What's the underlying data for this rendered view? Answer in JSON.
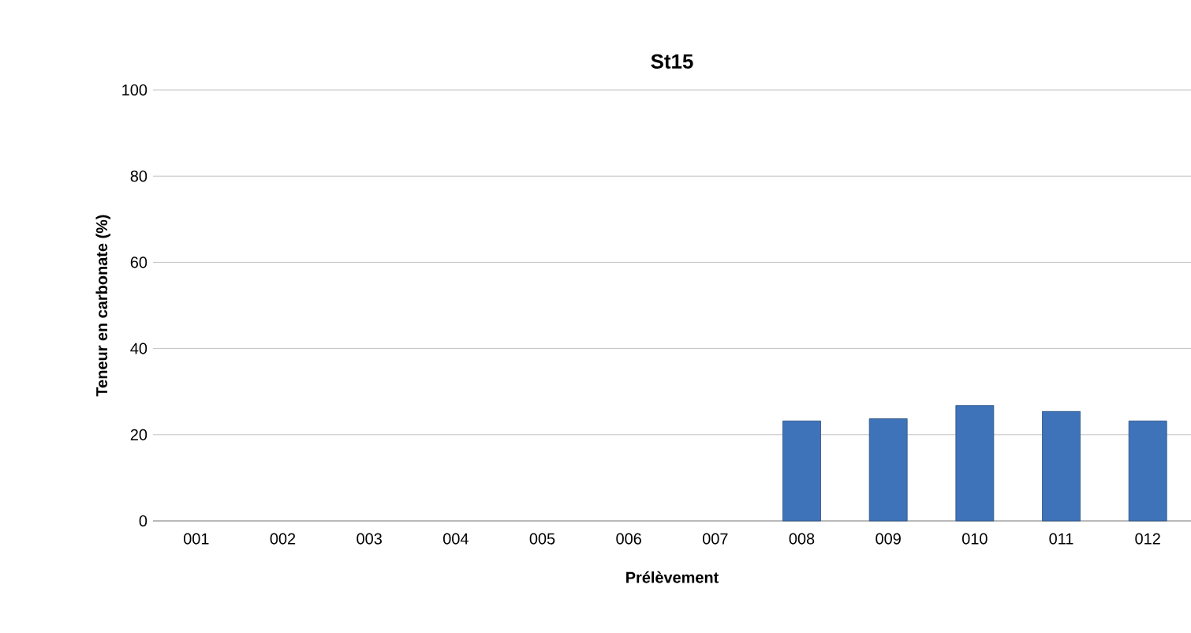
{
  "chart_data": {
    "type": "bar",
    "title": "St15",
    "xlabel": "Prélèvement",
    "ylabel": "Teneur en carbonate (%)",
    "categories": [
      "001",
      "002",
      "003",
      "004",
      "005",
      "006",
      "007",
      "008",
      "009",
      "010",
      "011",
      "012"
    ],
    "values": [
      null,
      null,
      null,
      null,
      null,
      null,
      null,
      23.2,
      23.7,
      26.8,
      25.4,
      23.2
    ],
    "color": "#3e73b9",
    "ylim": [
      0,
      100
    ],
    "yticks": [
      0,
      20,
      40,
      60,
      80,
      100
    ],
    "grid": "y"
  }
}
